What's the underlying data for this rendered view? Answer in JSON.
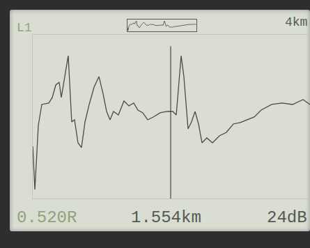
{
  "chart_data": {
    "type": "line",
    "title": "L1",
    "annotations": {
      "range": "4km",
      "reflection": "0.520R",
      "gain": "24dB"
    },
    "cursor": {
      "value": 1.554,
      "label": "1.554km"
    },
    "x": [
      0,
      0.024,
      0.063,
      0.102,
      0.181,
      0.22,
      0.259,
      0.298,
      0.322,
      0.361,
      0.4,
      0.439,
      0.471,
      0.51,
      0.549,
      0.589,
      0.636,
      0.691,
      0.746,
      0.793,
      0.832,
      0.871,
      0.91,
      0.965,
      1.028,
      1.083,
      1.138,
      1.185,
      1.24,
      1.295,
      1.358,
      1.436,
      1.515,
      1.577,
      1.617,
      1.64,
      1.672,
      1.703,
      1.75,
      1.789,
      1.829,
      1.868,
      1.907,
      1.962,
      2.025,
      2.103,
      2.182,
      2.26,
      2.339,
      2.417,
      2.496,
      2.574,
      2.692,
      2.81,
      2.927,
      3.045,
      3.124
    ],
    "values": [
      75,
      13,
      105,
      135,
      137,
      145,
      163,
      167,
      145,
      175,
      205,
      110,
      113,
      80,
      73,
      110,
      135,
      160,
      175,
      150,
      125,
      113,
      125,
      120,
      140,
      133,
      137,
      127,
      123,
      113,
      117,
      123,
      125,
      125,
      120,
      155,
      205,
      175,
      100,
      110,
      125,
      107,
      80,
      87,
      80,
      90,
      95,
      107,
      109,
      113,
      117,
      127,
      135,
      137,
      135,
      142,
      135
    ],
    "color": "#4a4a4a",
    "xlim": [
      0,
      3.124
    ],
    "ylim": [
      0,
      235
    ],
    "grid": false,
    "tick_labels": false
  }
}
